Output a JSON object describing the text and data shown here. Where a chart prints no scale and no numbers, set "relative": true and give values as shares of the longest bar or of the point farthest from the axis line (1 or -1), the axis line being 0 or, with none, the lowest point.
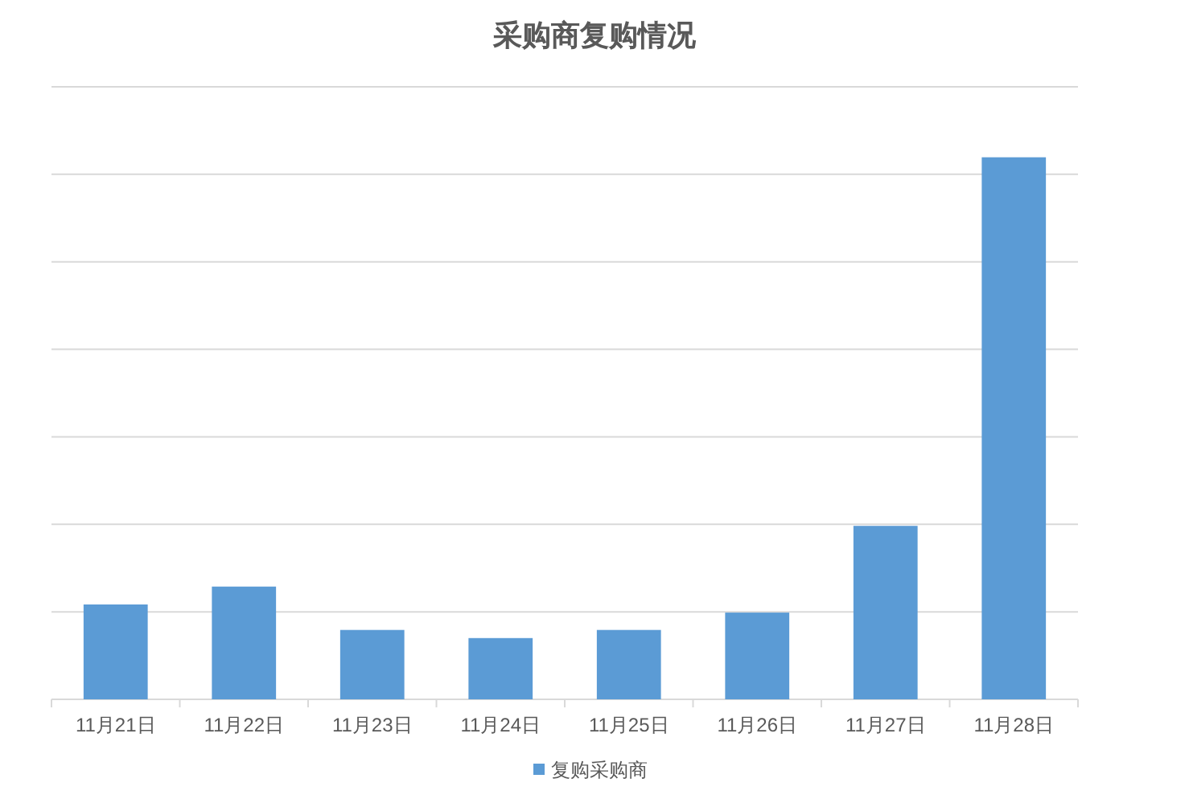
{
  "chart_data": {
    "type": "bar",
    "title": "采购商复购情况",
    "categories": [
      "11月21日",
      "11月22日",
      "11月23日",
      "11月24日",
      "11月25日",
      "11月26日",
      "11月27日",
      "11月28日"
    ],
    "series": [
      {
        "name": "复购采购商",
        "color": "#5b9bd5",
        "values": [
          0.175,
          0.208,
          0.128,
          0.113,
          0.128,
          0.16,
          0.32,
          1
        ]
      }
    ],
    "relative": true,
    "grid": "y",
    "legend": "bottom"
  }
}
